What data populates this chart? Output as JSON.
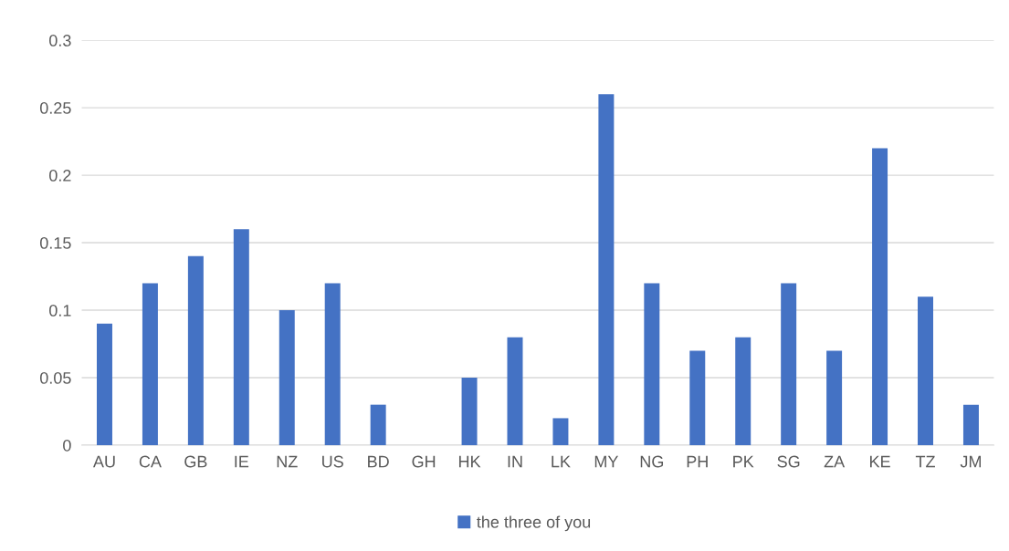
{
  "chart_data": {
    "type": "bar",
    "categories": [
      "AU",
      "CA",
      "GB",
      "IE",
      "NZ",
      "US",
      "BD",
      "GH",
      "HK",
      "IN",
      "LK",
      "MY",
      "NG",
      "PH",
      "PK",
      "SG",
      "ZA",
      "KE",
      "TZ",
      "JM"
    ],
    "series": [
      {
        "name": "the three of you",
        "color": "#4472c4",
        "values": [
          0.09,
          0.12,
          0.14,
          0.16,
          0.1,
          0.12,
          0.03,
          0,
          0.05,
          0.08,
          0.02,
          0.26,
          0.12,
          0.07,
          0.08,
          0.12,
          0.07,
          0.22,
          0.11,
          0.03
        ]
      }
    ],
    "ylim": [
      0,
      0.3
    ],
    "yticks": [
      0,
      0.05,
      0.1,
      0.15,
      0.2,
      0.25,
      0.3
    ],
    "grid": "y",
    "legend": "bottom"
  }
}
